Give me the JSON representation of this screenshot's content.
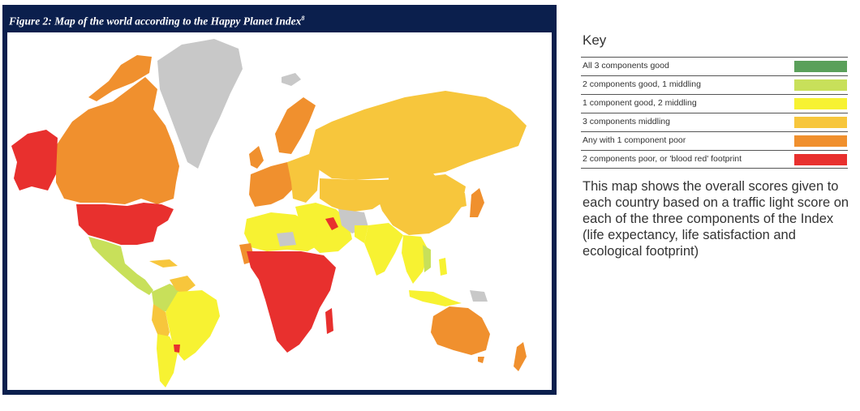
{
  "figure": {
    "title": "Figure 2: Map of the world according to the Happy Planet Index",
    "footnote_mark": "8"
  },
  "key": {
    "title": "Key",
    "items": [
      {
        "label": "All 3 components good",
        "color": "#5aa05a"
      },
      {
        "label": "2 components good, 1 middling",
        "color": "#c8e05a"
      },
      {
        "label": "1 component good, 2 middling",
        "color": "#f7f232"
      },
      {
        "label": "3 components middling",
        "color": "#f7c63c"
      },
      {
        "label": "Any with 1 component poor",
        "color": "#f0902e"
      },
      {
        "label": "2 components poor, or 'blood red' footprint",
        "color": "#e8302e"
      }
    ]
  },
  "description": "This map shows the overall scores given to each country based on a traffic light score on each of the three components of the Index (life expectancy, life satisfaction and ecological footprint)",
  "colors": {
    "frame": "#0b1f4d",
    "no_data": "#c8c8c8"
  }
}
